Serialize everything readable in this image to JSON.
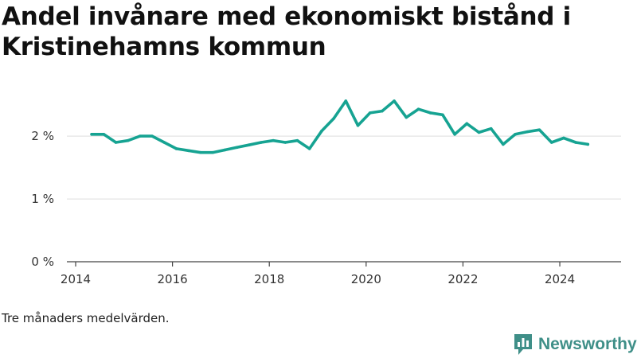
{
  "title": "Andel invånare med ekonomiskt bistånd i Kristinehamns kommun",
  "footnote": "Tre månaders medelvärden.",
  "brand": "Newsworthy",
  "colors": {
    "line": "#16a392",
    "grid": "#dddddd",
    "axis": "#444444",
    "brand": "#3f8f88"
  },
  "chart_data": {
    "type": "line",
    "xlabel": "",
    "ylabel": "",
    "xlim": [
      2014,
      2025.2
    ],
    "ylim": [
      0,
      2.8
    ],
    "x_ticks": [
      2014,
      2016,
      2018,
      2020,
      2022,
      2024
    ],
    "x_tick_labels": [
      "2014",
      "2016",
      "2018",
      "2020",
      "2022",
      "2024"
    ],
    "y_ticks": [
      0,
      1,
      2
    ],
    "y_tick_labels": [
      "0 %",
      "1 %",
      "2 %"
    ],
    "grid": true,
    "series": [
      {
        "x": [
          2014.33,
          2014.58,
          2014.83,
          2015.08,
          2015.33,
          2015.58,
          2015.83,
          2016.08,
          2016.33,
          2016.58,
          2016.83,
          2017.08,
          2017.33,
          2017.58,
          2017.83,
          2018.08,
          2018.33,
          2018.58,
          2018.83,
          2019.08,
          2019.33,
          2019.58,
          2019.83,
          2020.08,
          2020.33,
          2020.58,
          2020.83,
          2021.08,
          2021.33,
          2021.58,
          2021.83,
          2022.08,
          2022.33,
          2022.58,
          2022.83,
          2023.08,
          2023.33,
          2023.58,
          2023.83,
          2024.08,
          2024.33,
          2024.58
        ],
        "y": [
          2.03,
          2.03,
          1.9,
          1.93,
          2.0,
          2.0,
          1.9,
          1.8,
          1.77,
          1.74,
          1.74,
          1.78,
          1.82,
          1.86,
          1.9,
          1.93,
          1.9,
          1.93,
          1.8,
          2.08,
          2.28,
          2.56,
          2.17,
          2.37,
          2.4,
          2.56,
          2.3,
          2.43,
          2.37,
          2.34,
          2.03,
          2.2,
          2.06,
          2.12,
          1.87,
          2.03,
          2.07,
          2.1,
          1.9,
          1.97,
          1.9,
          1.87
        ]
      }
    ]
  }
}
